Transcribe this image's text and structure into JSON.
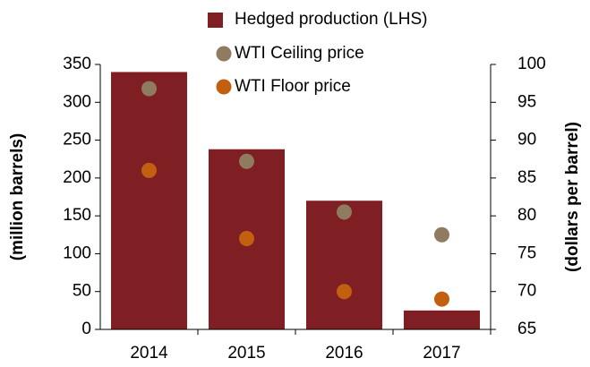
{
  "chart_data": {
    "type": "bar",
    "categories": [
      "2014",
      "2015",
      "2016",
      "2017"
    ],
    "y_label": "(million barrels)",
    "y2_label": "(dollars per barrel)",
    "ylim": [
      0,
      350
    ],
    "yticks": [
      0,
      50,
      100,
      150,
      200,
      250,
      300,
      350
    ],
    "y2lim": [
      65,
      100
    ],
    "y2ticks": [
      65,
      70,
      75,
      80,
      85,
      90,
      95,
      100
    ],
    "legend": "top",
    "series": [
      {
        "name": "Hedged production (LHS)",
        "type": "bar",
        "color": "#7f1f24",
        "values": [
          340,
          238,
          170,
          25
        ]
      },
      {
        "name": "WTI Ceiling price",
        "type": "scatter",
        "axis": "y2",
        "color": "#8f7b5f",
        "values": [
          96.8,
          87.2,
          80.5,
          77.5
        ]
      },
      {
        "name": "WTI Floor price",
        "type": "scatter",
        "axis": "y2",
        "color": "#c2600f",
        "values": [
          86,
          77,
          70,
          69
        ]
      }
    ]
  }
}
